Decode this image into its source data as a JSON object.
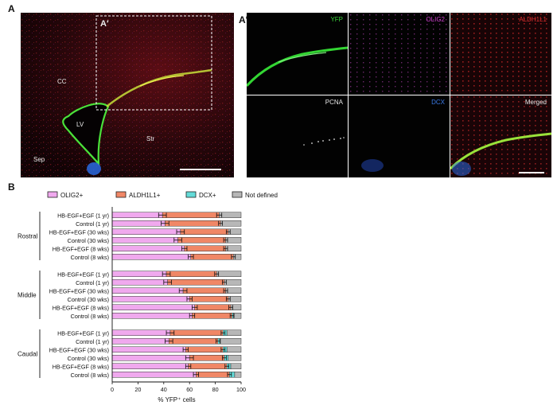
{
  "figure": {
    "panel_a": {
      "letter": "A",
      "inset_label": "A′",
      "labels": {
        "cc": "CC",
        "lv": "LV",
        "str": "Str",
        "sep": "Sep"
      }
    },
    "panel_a_prime": {
      "letter": "A′",
      "tiles": [
        {
          "label": "YFP",
          "color": "#39d639"
        },
        {
          "label": "OLIG2",
          "color": "#d040d0"
        },
        {
          "label": "ALDH1L1",
          "color": "#e23030"
        },
        {
          "label": "PCNA",
          "color": "#e6e6e6"
        },
        {
          "label": "DCX",
          "color": "#3a7ae8"
        },
        {
          "label": "Merged",
          "color": "#e6e6e6"
        }
      ]
    },
    "panel_b": {
      "letter": "B"
    }
  },
  "chart_data": {
    "type": "bar",
    "orientation": "horizontal",
    "stacked": true,
    "xlabel": "% YFP⁺ cells",
    "xlim": [
      0,
      100
    ],
    "xticks": [
      0,
      20,
      40,
      60,
      80,
      100
    ],
    "legend": [
      {
        "name": "OLIG2+",
        "color": "#f0a9ee"
      },
      {
        "name": "ALDH1L1+",
        "color": "#f08766"
      },
      {
        "name": "DCX+",
        "color": "#64dbd8"
      },
      {
        "name": "Not defined",
        "color": "#b7b7b7"
      }
    ],
    "legend_position": "top-left",
    "groups": [
      {
        "name": "Rostral",
        "rows": [
          {
            "label": "HB-EGF+EGF (1 yr)",
            "olig2": 39,
            "aldh1l1": 44,
            "dcx": 0,
            "err_olig2": 3,
            "err_aldh1l1": 2
          },
          {
            "label": "Control (1 yr)",
            "olig2": 41,
            "aldh1l1": 43,
            "dcx": 0,
            "err_olig2": 3,
            "err_aldh1l1": 1.5
          },
          {
            "label": "HB-EGF+EGF (30 wks)",
            "olig2": 53,
            "aldh1l1": 37,
            "dcx": 0,
            "err_olig2": 3,
            "err_aldh1l1": 1.5
          },
          {
            "label": "Control (30 wks)",
            "olig2": 51,
            "aldh1l1": 37,
            "dcx": 0,
            "err_olig2": 3,
            "err_aldh1l1": 1.5
          },
          {
            "label": "HB-EGF+EGF (8 wks)",
            "olig2": 56,
            "aldh1l1": 32,
            "dcx": 0,
            "err_olig2": 2,
            "err_aldh1l1": 1.5
          },
          {
            "label": "Control (8 wks)",
            "olig2": 61,
            "aldh1l1": 33,
            "dcx": 0,
            "err_olig2": 2,
            "err_aldh1l1": 1.5
          }
        ]
      },
      {
        "name": "Middle",
        "rows": [
          {
            "label": "HB-EGF+EGF (1 yr)",
            "olig2": 42,
            "aldh1l1": 39,
            "dcx": 0,
            "err_olig2": 3,
            "err_aldh1l1": 1.5
          },
          {
            "label": "Control (1 yr)",
            "olig2": 43,
            "aldh1l1": 44,
            "dcx": 0,
            "err_olig2": 3,
            "err_aldh1l1": 1.5
          },
          {
            "label": "HB-EGF+EGF (30 wks)",
            "olig2": 55,
            "aldh1l1": 33,
            "dcx": 0,
            "err_olig2": 3,
            "err_aldh1l1": 1.5
          },
          {
            "label": "Control (30 wks)",
            "olig2": 60,
            "aldh1l1": 30,
            "dcx": 0,
            "err_olig2": 2,
            "err_aldh1l1": 1.5
          },
          {
            "label": "HB-EGF+EGF (8 wks)",
            "olig2": 64,
            "aldh1l1": 28,
            "dcx": 0,
            "err_olig2": 2,
            "err_aldh1l1": 1.5
          },
          {
            "label": "Control (8 wks)",
            "olig2": 62,
            "aldh1l1": 31,
            "dcx": 1,
            "err_olig2": 2,
            "err_aldh1l1": 1.5
          }
        ]
      },
      {
        "name": "Caudal",
        "rows": [
          {
            "label": "HB-EGF+EGF (1 yr)",
            "olig2": 45,
            "aldh1l1": 41,
            "dcx": 3,
            "err_olig2": 3,
            "err_aldh1l1": 1.5
          },
          {
            "label": "Control (1 yr)",
            "olig2": 44,
            "aldh1l1": 38,
            "dcx": 2,
            "err_olig2": 3,
            "err_aldh1l1": 1.5
          },
          {
            "label": "HB-EGF+EGF (30 wks)",
            "olig2": 57,
            "aldh1l1": 29,
            "dcx": 3,
            "err_olig2": 2,
            "err_aldh1l1": 1.5
          },
          {
            "label": "Control (30 wks)",
            "olig2": 60,
            "aldh1l1": 27,
            "dcx": 3,
            "err_olig2": 3,
            "err_aldh1l1": 1.5
          },
          {
            "label": "HB-EGF+EGF (8 wks)",
            "olig2": 59,
            "aldh1l1": 30,
            "dcx": 3,
            "err_olig2": 2,
            "err_aldh1l1": 1.5
          },
          {
            "label": "Control (8 wks)",
            "olig2": 65,
            "aldh1l1": 26,
            "dcx": 4,
            "err_olig2": 2,
            "err_aldh1l1": 1.5
          }
        ]
      }
    ]
  }
}
